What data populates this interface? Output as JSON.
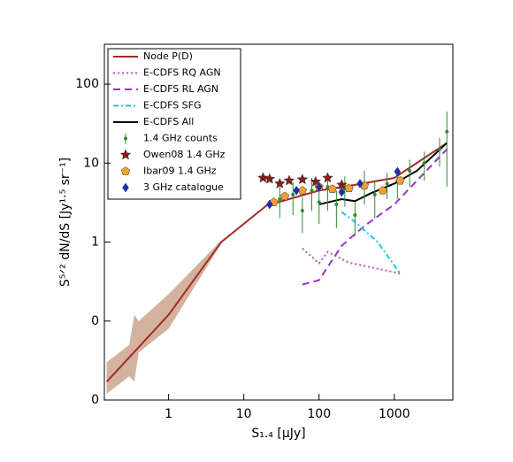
{
  "chart_data": {
    "type": "line",
    "x_label": "S₁.₄ [μJy]",
    "y_label": "S⁵ᐟ² dN/dS [Jy¹·⁵ sr⁻¹]",
    "log_x": true,
    "log_y": true,
    "xlim": [
      0.14,
      6000
    ],
    "ylim": [
      0.01,
      320
    ],
    "xticks": [
      1,
      10,
      100,
      1000
    ],
    "yticks": [
      {
        "value": 0.01,
        "label": "0"
      },
      {
        "value": 0.1,
        "label": "0"
      },
      1,
      10,
      100
    ],
    "band": {
      "color": "#c8a088",
      "x": [
        0.15,
        0.3,
        0.35,
        0.4,
        1,
        5
      ],
      "lower": [
        0.012,
        0.02,
        0.017,
        0.04,
        0.08,
        0.95
      ],
      "upper": [
        0.03,
        0.05,
        0.12,
        0.1,
        0.22,
        1.05
      ]
    },
    "series": [
      {
        "name": "Node P(D)",
        "color": "#a52a2a",
        "style": "solid",
        "x": [
          0.15,
          1,
          5,
          20,
          100,
          300,
          1000,
          5000
        ],
        "values": [
          0.017,
          0.12,
          1.0,
          2.9,
          4.5,
          5.3,
          6.5,
          18
        ]
      },
      {
        "name": "E-CDFS RQ AGN",
        "color": "#c050c0",
        "style": "dotted",
        "x": [
          60,
          100,
          130,
          250,
          1200
        ],
        "values": [
          0.83,
          0.54,
          0.75,
          0.55,
          0.4
        ]
      },
      {
        "name": "E-CDFS RL AGN",
        "color": "#9932cc",
        "style": "dashed",
        "x": [
          60,
          100,
          200,
          400,
          1000,
          5000
        ],
        "values": [
          0.29,
          0.33,
          0.9,
          1.6,
          3,
          15
        ]
      },
      {
        "name": "E-CDFS SFG",
        "color": "#20c8d8",
        "style": "dashdot",
        "x": [
          200,
          300,
          600,
          1200
        ],
        "values": [
          2.4,
          1.8,
          1.0,
          0.4
        ]
      },
      {
        "name": "E-CDFS All",
        "color": "#000000",
        "style": "solid",
        "x": [
          100,
          200,
          300,
          500,
          1000,
          2000,
          5000
        ],
        "values": [
          3.0,
          3.5,
          3.3,
          4.2,
          5.5,
          8,
          18
        ]
      },
      {
        "name": "1.4 GHz counts",
        "color": "#2e8b2e",
        "style": "errorbar",
        "x": [
          30,
          45,
          60,
          80,
          100,
          130,
          170,
          220,
          300,
          400,
          550,
          800,
          1100,
          1600,
          2500,
          4000,
          5000
        ],
        "values": [
          3.5,
          4.0,
          2.5,
          4.5,
          3.2,
          5.0,
          3.0,
          4.8,
          2.2,
          5.5,
          4.0,
          5.5,
          6.0,
          8.0,
          10,
          15,
          25
        ],
        "errors": [
          1.5,
          1.8,
          1.2,
          2.0,
          1.5,
          2.5,
          1.5,
          2.0,
          1.0,
          2.5,
          2.0,
          2.0,
          2.5,
          3.0,
          4.0,
          6.0,
          20
        ]
      },
      {
        "name": "Owen08 1.4 GHz",
        "color": "#8b1a1a",
        "style": "star",
        "x": [
          18,
          22,
          30,
          40,
          60,
          90,
          130,
          200
        ],
        "values": [
          6.5,
          6.3,
          5.5,
          6.0,
          6.2,
          5.8,
          6.5,
          5.3
        ]
      },
      {
        "name": "Ibar09 1.4 GHz",
        "color": "#f0a030",
        "style": "pentagon",
        "x": [
          25,
          35,
          60,
          100,
          150,
          250,
          400,
          700,
          1200
        ],
        "values": [
          3.2,
          3.8,
          4.5,
          5.0,
          4.7,
          4.8,
          5.2,
          4.5,
          6.0
        ]
      },
      {
        "name": "3 GHz catalogue",
        "color": "#1a2fbf",
        "style": "diamond",
        "x": [
          22,
          50,
          100,
          200,
          350,
          1100
        ],
        "values": [
          3.0,
          4.5,
          5.0,
          4.3,
          5.5,
          7.8
        ]
      }
    ]
  }
}
